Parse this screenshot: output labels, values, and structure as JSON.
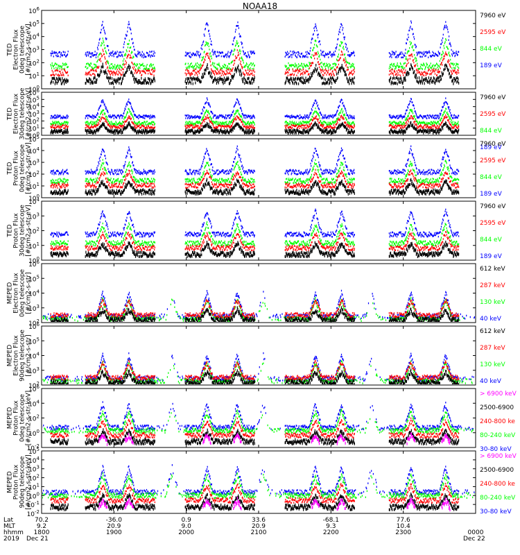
{
  "title": "NOAA18",
  "colors": {
    "blue": "#0000ff",
    "red": "#ff0000",
    "green": "#00ff00",
    "black": "#000000",
    "magenta": "#ff00ff"
  },
  "footer": {
    "row_labels": [
      "Lat",
      "MLT",
      "hhmm",
      "2019"
    ],
    "date_left": "Dec 21",
    "date_right": "Dec 22",
    "columns": [
      {
        "lat": "70.2",
        "mlt": "9.2",
        "hhmm": "1800"
      },
      {
        "lat": "-36.0",
        "mlt": "20.9",
        "hhmm": "1900"
      },
      {
        "lat": "0.9",
        "mlt": "9.0",
        "hhmm": "2000"
      },
      {
        "lat": "33.6",
        "mlt": "20.9",
        "hhmm": "2100"
      },
      {
        "lat": "-68.1",
        "mlt": "9.3",
        "hhmm": "2200"
      },
      {
        "lat": "77.6",
        "mlt": "10.4",
        "hhmm": "2300"
      },
      {
        "lat": "",
        "mlt": "",
        "hhmm": "0000"
      }
    ]
  },
  "chart_data": [
    {
      "type": "scatter",
      "panel": "TED Electron Flux 0deg telescope",
      "ylabel": [
        "TED",
        "Electron Flux",
        "0deg telescope",
        "[#/cm2-s-str-eV]"
      ],
      "y_ticks": [
        "10^0",
        "10^1",
        "10^2",
        "10^3",
        "10^4",
        "10^5",
        "10^6"
      ],
      "log_scale": true,
      "x_range": [
        "1800",
        "0000"
      ],
      "series": [
        {
          "name": "7960 eV",
          "color": "black"
        },
        {
          "name": "2595 eV",
          "color": "red"
        },
        {
          "name": "844 eV",
          "color": "green"
        },
        {
          "name": "189 eV",
          "color": "blue"
        }
      ]
    },
    {
      "type": "scatter",
      "panel": "TED Electron Flux 30deg telescope",
      "ylabel": [
        "TED",
        "Electron Flux",
        "30deg telescope",
        "[#/cm2-s-str-eV]"
      ],
      "y_ticks": [
        "10^0",
        "10^1",
        "10^2",
        "10^3",
        "10^4",
        "10^5",
        "10^6"
      ],
      "log_scale": true,
      "series": [
        {
          "name": "7960 eV",
          "color": "black"
        },
        {
          "name": "2595 eV",
          "color": "red"
        },
        {
          "name": "844 eV",
          "color": "green"
        },
        {
          "name": "189 eV",
          "color": "blue"
        }
      ]
    },
    {
      "type": "scatter",
      "panel": "TED Proton Flux 0deg telescope",
      "ylabel": [
        "TED",
        "Proton Flux",
        "0deg telescope",
        "[#/cm2-s-str-eV]"
      ],
      "y_ticks": [
        "10^0",
        "10^1",
        "10^2",
        "10^3",
        "10^4",
        "10^5"
      ],
      "log_scale": true,
      "series": [
        {
          "name": "7960 eV",
          "color": "black"
        },
        {
          "name": "2595 eV",
          "color": "red"
        },
        {
          "name": "844 eV",
          "color": "green"
        },
        {
          "name": "189 eV",
          "color": "blue"
        }
      ]
    },
    {
      "type": "scatter",
      "panel": "TED Proton Flux 30deg telescope",
      "ylabel": [
        "TED",
        "Proton Flux",
        "30deg telescope",
        "[#/cm2-s-str-eV]"
      ],
      "y_ticks": [
        "10^0",
        "10^1",
        "10^2",
        "10^3",
        "10^4"
      ],
      "log_scale": true,
      "series": [
        {
          "name": "7960 eV",
          "color": "black"
        },
        {
          "name": "2595 eV",
          "color": "red"
        },
        {
          "name": "844 eV",
          "color": "green"
        },
        {
          "name": "189 eV",
          "color": "blue"
        }
      ]
    },
    {
      "type": "scatter",
      "panel": "MEPED Electron Flux 0deg telescope",
      "ylabel": [
        "MEPED",
        "Electron Flux",
        "0deg telescope",
        "[#/cm2-s-str]"
      ],
      "y_ticks": [
        "10^2",
        "10^3",
        "10^4",
        "10^5",
        "10^6"
      ],
      "log_scale": true,
      "series": [
        {
          "name": "612 keV",
          "color": "black"
        },
        {
          "name": "287 keV",
          "color": "red"
        },
        {
          "name": "130 keV",
          "color": "green"
        },
        {
          "name": "40 keV",
          "color": "blue"
        }
      ]
    },
    {
      "type": "scatter",
      "panel": "MEPED Electron Flux 90deg telescope",
      "ylabel": [
        "MEPED",
        "Electron Flux",
        "90deg telescope",
        "[#/cm2-s-str]"
      ],
      "y_ticks": [
        "10^2",
        "10^3",
        "10^4",
        "10^5",
        "10^6"
      ],
      "log_scale": true,
      "series": [
        {
          "name": "612 keV",
          "color": "black"
        },
        {
          "name": "287 keV",
          "color": "red"
        },
        {
          "name": "130 keV",
          "color": "green"
        },
        {
          "name": "40 keV",
          "color": "blue"
        }
      ]
    },
    {
      "type": "scatter",
      "panel": "MEPED Proton Flux 0deg telescope",
      "ylabel": [
        "MEPED",
        "Proton Flux",
        "0deg telescope",
        "[#/cm2-s-str-keV]"
      ],
      "y_ticks": [
        "10^-2",
        "10^0",
        "10^2",
        "10^4",
        "10^6"
      ],
      "log_scale": true,
      "series": [
        {
          "name": "> 6900 keV",
          "color": "magenta"
        },
        {
          "name": "2500-6900",
          "color": "black"
        },
        {
          "name": "240-800 ke",
          "color": "red"
        },
        {
          "name": "80-240 keV",
          "color": "green"
        },
        {
          "name": "30-80 keV",
          "color": "blue"
        }
      ]
    },
    {
      "type": "scatter",
      "panel": "MEPED Proton Flux 90deg telescope",
      "ylabel": [
        "MEPED",
        "Proton Flux",
        "90deg telescope",
        "[#/cm2-s-str-keV]"
      ],
      "y_ticks": [
        "10^-2",
        "10^-1",
        "10^0",
        "10^1",
        "10^2",
        "10^3",
        "10^4",
        "10^5"
      ],
      "log_scale": true,
      "series": [
        {
          "name": "> 6900 keV",
          "color": "magenta"
        },
        {
          "name": "2500-6900",
          "color": "black"
        },
        {
          "name": "240-800 ke",
          "color": "red"
        },
        {
          "name": "80-240 keV",
          "color": "green"
        },
        {
          "name": "30-80 keV",
          "color": "blue"
        }
      ]
    }
  ]
}
